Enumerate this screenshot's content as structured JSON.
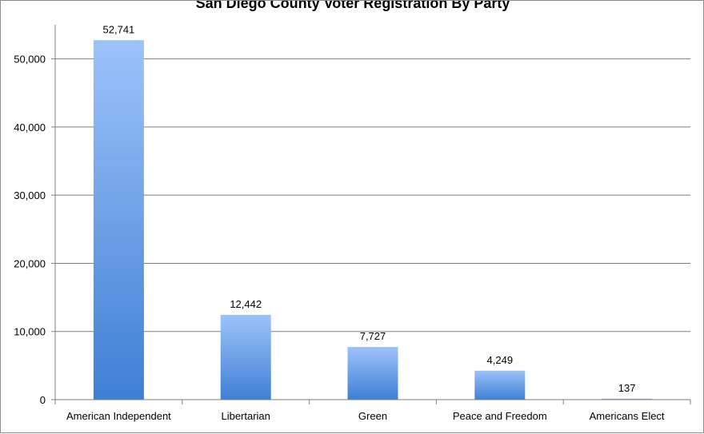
{
  "chart_data": {
    "type": "bar",
    "title": "San Diego County Voter Registration By Party",
    "categories": [
      "American Independent",
      "Libertarian",
      "Green",
      "Peace and Freedom",
      "Americans Elect"
    ],
    "values": [
      52741,
      12442,
      7727,
      4249,
      137
    ],
    "value_labels": [
      "52,741",
      "12,442",
      "7,727",
      "4,249",
      "137"
    ],
    "yticks": [
      0,
      10000,
      20000,
      30000,
      40000,
      50000
    ],
    "ytick_labels": [
      "0",
      "10,000",
      "20,000",
      "30,000",
      "40,000",
      "50,000"
    ],
    "ylim": [
      0,
      55000
    ],
    "xlabel": "",
    "ylabel": "",
    "grid": true,
    "legend": false,
    "colors": {
      "bar_top": "#9cc3fa",
      "bar_bottom": "#3f7fd4",
      "grid": "#7f7f7f",
      "axis": "#7f7f7f"
    }
  }
}
